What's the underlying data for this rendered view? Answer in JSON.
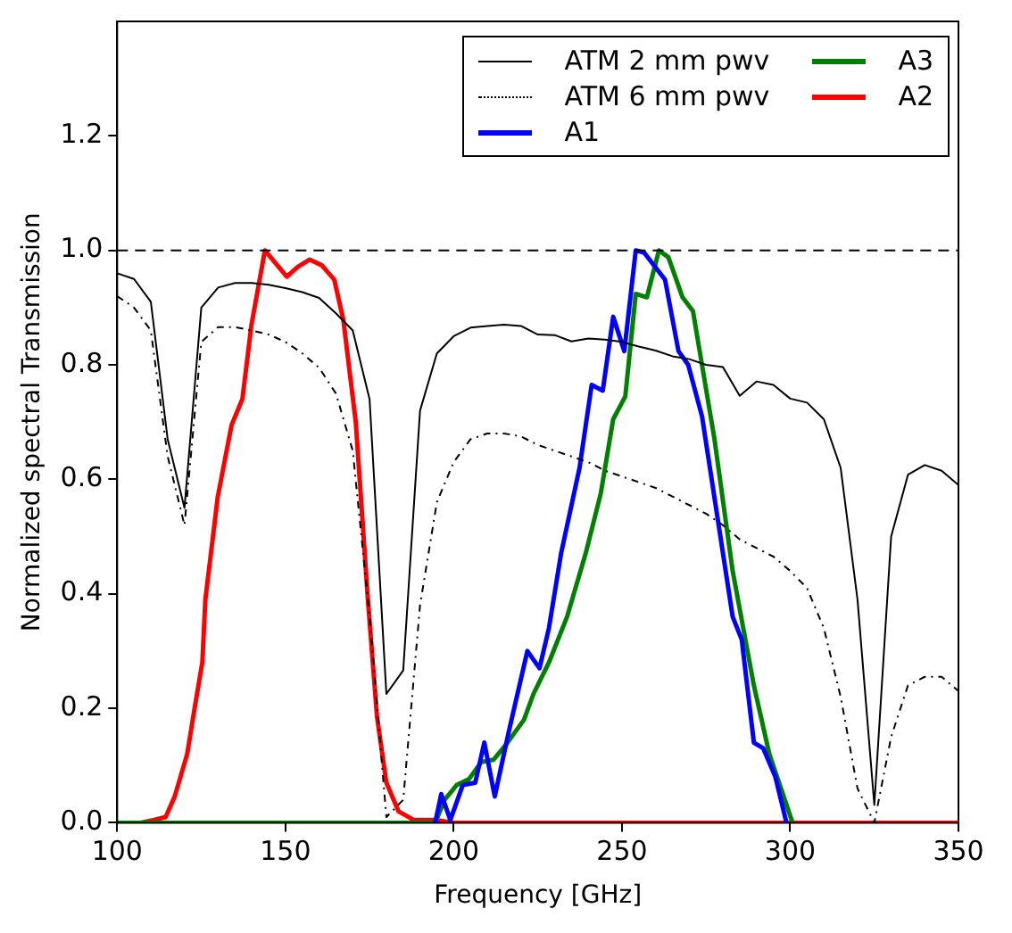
{
  "chart_data": {
    "type": "line",
    "xlabel": "Frequency [GHz]",
    "ylabel": "Normalized spectral Transmission",
    "xlim": [
      100,
      350
    ],
    "xticks": [
      100,
      150,
      200,
      250,
      300,
      350
    ],
    "ylim": [
      0,
      1.4
    ],
    "yticks": [
      {
        "value": 0,
        "label": "0.0"
      },
      {
        "value": 0.2,
        "label": "0.2"
      },
      {
        "value": 0.4,
        "label": "0.4"
      },
      {
        "value": 0.6,
        "label": "0.6"
      },
      {
        "value": 0.8,
        "label": "0.8"
      },
      {
        "value": 1.0,
        "label": "1.0"
      },
      {
        "value": 1.2,
        "label": "1.2"
      }
    ],
    "grid": false,
    "legend": "top right",
    "marker": "none",
    "ref_lines": [
      {
        "axis": "y",
        "value": 1.0,
        "label": null,
        "color": "#000000",
        "line_style": "dashed"
      }
    ],
    "series": [
      {
        "name": "ATM 2 mm pwv",
        "color": "#000000",
        "line_style": "solid",
        "x": [
          100,
          105,
          110,
          115,
          120,
          125,
          130,
          135,
          140,
          145,
          150,
          155,
          160,
          165,
          170,
          175,
          180,
          185,
          190,
          195,
          200,
          205,
          210,
          215,
          220,
          225,
          230,
          235,
          240,
          245,
          250,
          255,
          260,
          265,
          270,
          275,
          280,
          285,
          290,
          295,
          300,
          305,
          310,
          315,
          320,
          325,
          330,
          335,
          340,
          345,
          350
        ],
        "values": [
          0.96,
          0.95,
          0.91,
          0.67,
          0.55,
          0.9,
          0.935,
          0.943,
          0.943,
          0.94,
          0.934,
          0.927,
          0.917,
          0.89,
          0.86,
          0.74,
          0.225,
          0.266,
          0.72,
          0.82,
          0.85,
          0.865,
          0.868,
          0.87,
          0.868,
          0.853,
          0.852,
          0.841,
          0.846,
          0.844,
          0.84,
          0.832,
          0.825,
          0.815,
          0.81,
          0.8,
          0.796,
          0.746,
          0.771,
          0.765,
          0.741,
          0.734,
          0.705,
          0.62,
          0.39,
          0.031,
          0.5,
          0.608,
          0.625,
          0.615,
          0.59
        ]
      },
      {
        "name": "ATM 6 mm pwv",
        "color": "#000000",
        "line_style": "dotted",
        "x": [
          100,
          105,
          110,
          115,
          120,
          125,
          130,
          135,
          140,
          145,
          150,
          155,
          160,
          165,
          170,
          175,
          180,
          185,
          190,
          195,
          200,
          205,
          210,
          215,
          220,
          225,
          230,
          235,
          240,
          245,
          250,
          255,
          260,
          265,
          270,
          275,
          280,
          285,
          290,
          295,
          300,
          305,
          310,
          315,
          320,
          325,
          330,
          335,
          340,
          345,
          350
        ],
        "values": [
          0.92,
          0.9,
          0.86,
          0.64,
          0.52,
          0.84,
          0.866,
          0.866,
          0.86,
          0.853,
          0.84,
          0.82,
          0.795,
          0.75,
          0.65,
          0.36,
          0.01,
          0.04,
          0.38,
          0.56,
          0.63,
          0.67,
          0.68,
          0.68,
          0.675,
          0.66,
          0.65,
          0.64,
          0.63,
          0.615,
          0.605,
          0.595,
          0.585,
          0.57,
          0.555,
          0.54,
          0.52,
          0.495,
          0.48,
          0.465,
          0.44,
          0.41,
          0.34,
          0.22,
          0.06,
          0.0,
          0.15,
          0.24,
          0.255,
          0.255,
          0.23
        ]
      },
      {
        "name": "A1",
        "color": "#0000ff",
        "line_style": "solid",
        "x": [
          194.5,
          196.3,
          199,
          202.7,
          206.4,
          209.1,
          212.2,
          216.4,
          221.9,
          225.5,
          228.3,
          231.9,
          237.4,
          241,
          244.3,
          247.4,
          250.7,
          254.1,
          256.6,
          262.8,
          266.8,
          269.7,
          273.8,
          282.9,
          285.6,
          289.2,
          292,
          295.6,
          298.9
        ],
        "values": [
          0,
          0.05,
          0.005,
          0.066,
          0.07,
          0.14,
          0.046,
          0.16,
          0.3,
          0.27,
          0.34,
          0.47,
          0.62,
          0.765,
          0.755,
          0.884,
          0.824,
          1.0,
          0.996,
          0.949,
          0.824,
          0.8,
          0.71,
          0.36,
          0.32,
          0.14,
          0.13,
          0.08,
          0
        ]
      },
      {
        "name": "A3",
        "color": "#008000",
        "line_style": "solid",
        "x": [
          100,
          194.5,
          197.3,
          200.9,
          204.5,
          208.2,
          211.8,
          215.5,
          220.9,
          223.7,
          228.3,
          233.7,
          239.2,
          243.7,
          247.4,
          251,
          254.1,
          257.4,
          261,
          263.8,
          268,
          271.1,
          277.5,
          282.9,
          289.2,
          293.8,
          300.7
        ],
        "values": [
          0,
          0,
          0.04,
          0.066,
          0.076,
          0.106,
          0.11,
          0.136,
          0.18,
          0.225,
          0.28,
          0.36,
          0.47,
          0.575,
          0.705,
          0.745,
          0.924,
          0.918,
          1.0,
          0.988,
          0.918,
          0.894,
          0.67,
          0.44,
          0.24,
          0.12,
          0
        ]
      },
      {
        "name": "A2",
        "color": "#ff0000",
        "line_style": "solid",
        "x": [
          100,
          107,
          111,
          114.4,
          117.1,
          120.8,
          123,
          125.3,
          126.2,
          129.9,
          134,
          137.2,
          139.9,
          143.9,
          150.4,
          153.6,
          157.2,
          160.8,
          164.5,
          167.2,
          170.9,
          174.5,
          177.2,
          180,
          183.6,
          188.1,
          194.5,
          200,
          350
        ],
        "values": [
          0,
          0,
          0.005,
          0.01,
          0.046,
          0.12,
          0.2,
          0.28,
          0.39,
          0.57,
          0.695,
          0.74,
          0.87,
          1.0,
          0.954,
          0.971,
          0.984,
          0.974,
          0.949,
          0.879,
          0.7,
          0.39,
          0.186,
          0.07,
          0.02,
          0.005,
          0.005,
          0,
          0
        ]
      }
    ]
  }
}
